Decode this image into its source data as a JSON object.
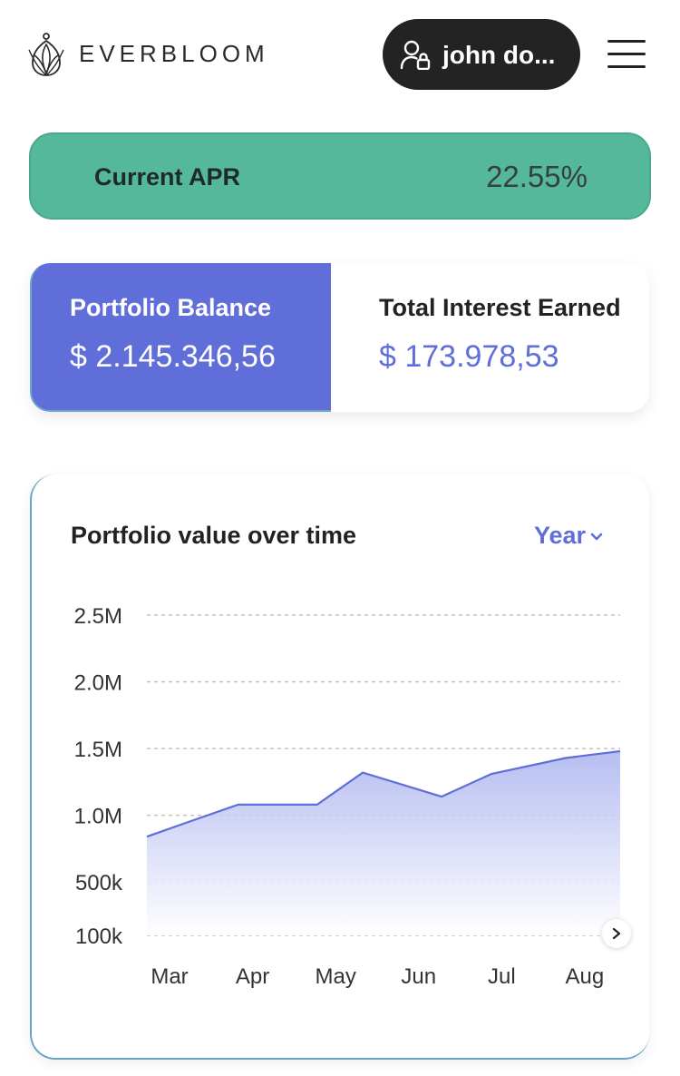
{
  "header": {
    "brand": "EVERBLOOM",
    "user_name": "john do...",
    "logo_icon": "lotus-logo-icon",
    "user_icon": "user-lock-icon",
    "menu_icon": "hamburger-menu-icon"
  },
  "apr": {
    "label": "Current APR",
    "value": "22.55%"
  },
  "balances": {
    "portfolio_label": "Portfolio Balance",
    "portfolio_value": "$ 2.145.346,56",
    "interest_label": "Total Interest Earned",
    "interest_value": "$ 173.978,53"
  },
  "chart_card": {
    "title": "Portfolio value over time",
    "range": "Year"
  },
  "colors": {
    "accent": "#5f6ed9",
    "apr_green": "#56b89a",
    "dark": "#232323"
  },
  "chart_data": {
    "type": "area",
    "categories": [
      "Mar",
      "Apr",
      "May",
      "Jun",
      "Jul",
      "Aug"
    ],
    "y_ticks": [
      "2.5M",
      "2.0M",
      "1.5M",
      "1.0M",
      "500k",
      "100k"
    ],
    "y_tick_values": [
      2500000,
      2000000,
      1500000,
      1000000,
      500000,
      100000
    ],
    "series": [
      {
        "x": [
          0,
          0.5,
          1.1,
          2.05,
          2.6,
          3.55,
          4.15,
          5.05,
          5.5
        ],
        "values": [
          840000,
          950000,
          1080000,
          1080000,
          1320000,
          1140000,
          1310000,
          1430000,
          1480000
        ]
      }
    ],
    "ylim": [
      100000,
      2500000
    ],
    "grid": true
  }
}
